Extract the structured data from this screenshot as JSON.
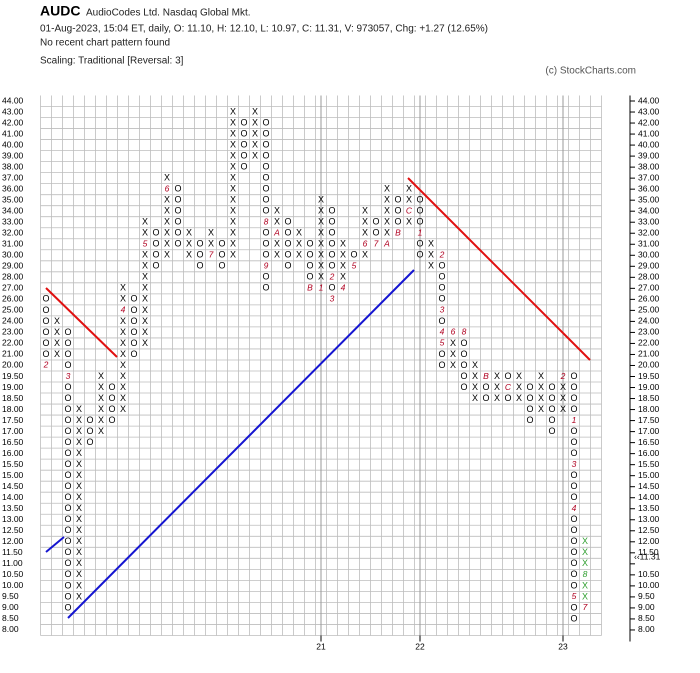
{
  "chart_data": {
    "type": "point-and-figure",
    "symbol": "AUDC",
    "company": "AudioCodes Ltd.  Nasdaq Global Mkt.",
    "quote_line": "01-Aug-2023, 15:04 ET, daily, O: 11.10, H: 12.10, L: 10.97, C: 11.31, V: 973057, Chg: +1.27 (12.65%)",
    "pattern_note": "No recent chart pattern found",
    "scaling": "Scaling: Traditional [Reversal: 3]",
    "credit": "(c) StockCharts.com",
    "x_symbol": "X",
    "o_symbol": "O",
    "x_color": "#000000",
    "o_color": "#000000",
    "mark_color": "#b00020",
    "grid": true,
    "yticks": [
      {
        "value": 44,
        "label": "44.00"
      },
      {
        "value": 43,
        "label": "43.00"
      },
      {
        "value": 42,
        "label": "42.00"
      },
      {
        "value": 41,
        "label": "41.00"
      },
      {
        "value": 40,
        "label": "40.00"
      },
      {
        "value": 39,
        "label": "39.00"
      },
      {
        "value": 38,
        "label": "38.00"
      },
      {
        "value": 37,
        "label": "37.00"
      },
      {
        "value": 36,
        "label": "36.00"
      },
      {
        "value": 35,
        "label": "35.00"
      },
      {
        "value": 34,
        "label": "34.00"
      },
      {
        "value": 33,
        "label": "33.00"
      },
      {
        "value": 32,
        "label": "32.00"
      },
      {
        "value": 31,
        "label": "31.00"
      },
      {
        "value": 30,
        "label": "30.00"
      },
      {
        "value": 29,
        "label": "29.00"
      },
      {
        "value": 28,
        "label": "28.00"
      },
      {
        "value": 27,
        "label": "27.00"
      },
      {
        "value": 26,
        "label": "26.00"
      },
      {
        "value": 25,
        "label": "25.00"
      },
      {
        "value": 24,
        "label": "24.00"
      },
      {
        "value": 23,
        "label": "23.00"
      },
      {
        "value": 22,
        "label": "22.00"
      },
      {
        "value": 21,
        "label": "21.00"
      },
      {
        "value": 20,
        "label": "20.00"
      },
      {
        "value": 19.5,
        "label": "19.50"
      },
      {
        "value": 19,
        "label": "19.00"
      },
      {
        "value": 18.5,
        "label": "18.50"
      },
      {
        "value": 18,
        "label": "18.00"
      },
      {
        "value": 17.5,
        "label": "17.50"
      },
      {
        "value": 17,
        "label": "17.00"
      },
      {
        "value": 16.5,
        "label": "16.50"
      },
      {
        "value": 16,
        "label": "16.00"
      },
      {
        "value": 15.5,
        "label": "15.50"
      },
      {
        "value": 15,
        "label": "15.00"
      },
      {
        "value": 14.5,
        "label": "14.50"
      },
      {
        "value": 14,
        "label": "14.00"
      },
      {
        "value": 13.5,
        "label": "13.50"
      },
      {
        "value": 13,
        "label": "13.00"
      },
      {
        "value": 12.5,
        "label": "12.50"
      },
      {
        "value": 12,
        "label": "12.00"
      },
      {
        "value": 11.5,
        "label": "11.50"
      },
      {
        "value": 11,
        "label": "11.00",
        "color": "#b00020"
      },
      {
        "value": 10.5,
        "label": "10.50"
      },
      {
        "value": 10,
        "label": "10.00"
      },
      {
        "value": 9.5,
        "label": "9.50"
      },
      {
        "value": 9,
        "label": "9.00"
      },
      {
        "value": 8.5,
        "label": "8.50"
      },
      {
        "value": 8,
        "label": "8.00"
      }
    ],
    "last_price": {
      "value": 11.31,
      "label": "‹‹11.31",
      "color": "#b00020"
    },
    "columns": [
      {
        "kind": "O",
        "from": 20,
        "to": 26,
        "marks": [
          {
            "price": 20,
            "label": "2"
          }
        ]
      },
      {
        "kind": "X",
        "from": 21,
        "to": 24,
        "marks": []
      },
      {
        "kind": "O",
        "from": 9,
        "to": 23,
        "marks": [
          {
            "price": 19.5,
            "label": "3"
          }
        ]
      },
      {
        "kind": "X",
        "from": 9.5,
        "to": 18,
        "marks": []
      },
      {
        "kind": "O",
        "from": 16.5,
        "to": 17.5,
        "marks": []
      },
      {
        "kind": "X",
        "from": 17,
        "to": 19.5,
        "marks": []
      },
      {
        "kind": "O",
        "from": 17.5,
        "to": 19,
        "marks": []
      },
      {
        "kind": "X",
        "from": 18,
        "to": 27,
        "marks": [
          {
            "price": 25,
            "label": "4"
          }
        ]
      },
      {
        "kind": "O",
        "from": 21,
        "to": 26,
        "marks": []
      },
      {
        "kind": "X",
        "from": 22,
        "to": 33,
        "marks": [
          {
            "price": 31,
            "label": "5"
          }
        ]
      },
      {
        "kind": "O",
        "from": 29,
        "to": 32,
        "marks": []
      },
      {
        "kind": "X",
        "from": 30,
        "to": 37,
        "marks": [
          {
            "price": 36,
            "label": "6"
          }
        ]
      },
      {
        "kind": "O",
        "from": 31,
        "to": 36,
        "marks": []
      },
      {
        "kind": "X",
        "from": 30,
        "to": 32,
        "marks": []
      },
      {
        "kind": "O",
        "from": 29,
        "to": 31,
        "marks": []
      },
      {
        "kind": "X",
        "from": 30,
        "to": 32,
        "marks": [
          {
            "price": 30,
            "label": "7"
          }
        ]
      },
      {
        "kind": "O",
        "from": 29,
        "to": 31,
        "marks": []
      },
      {
        "kind": "X",
        "from": 30,
        "to": 43,
        "marks": []
      },
      {
        "kind": "O",
        "from": 38,
        "to": 42,
        "marks": []
      },
      {
        "kind": "X",
        "from": 39,
        "to": 43,
        "marks": []
      },
      {
        "kind": "O",
        "from": 27,
        "to": 42,
        "marks": [
          {
            "price": 33,
            "label": "8"
          },
          {
            "price": 29,
            "label": "9"
          }
        ]
      },
      {
        "kind": "X",
        "from": 30,
        "to": 34,
        "marks": [
          {
            "price": 32,
            "label": "A"
          }
        ]
      },
      {
        "kind": "O",
        "from": 29,
        "to": 33,
        "marks": []
      },
      {
        "kind": "X",
        "from": 30,
        "to": 32,
        "marks": []
      },
      {
        "kind": "O",
        "from": 27,
        "to": 31,
        "marks": [
          {
            "price": 27,
            "label": "B"
          }
        ]
      },
      {
        "kind": "X",
        "from": 27,
        "to": 35,
        "marks": [
          {
            "price": 27,
            "label": "1"
          }
        ]
      },
      {
        "kind": "O",
        "from": 26,
        "to": 34,
        "marks": [
          {
            "price": 28,
            "label": "2"
          },
          {
            "price": 26,
            "label": "3"
          }
        ]
      },
      {
        "kind": "X",
        "from": 27,
        "to": 31,
        "marks": [
          {
            "price": 27,
            "label": "4"
          }
        ]
      },
      {
        "kind": "O",
        "from": 29,
        "to": 30,
        "marks": [
          {
            "price": 29,
            "label": "5"
          }
        ]
      },
      {
        "kind": "X",
        "from": 30,
        "to": 34,
        "marks": [
          {
            "price": 31,
            "label": "6"
          }
        ]
      },
      {
        "kind": "O",
        "from": 31,
        "to": 33,
        "marks": [
          {
            "price": 31,
            "label": "7"
          }
        ]
      },
      {
        "kind": "X",
        "from": 31,
        "to": 36,
        "marks": [
          {
            "price": 31,
            "label": "A"
          }
        ]
      },
      {
        "kind": "O",
        "from": 32,
        "to": 35,
        "marks": [
          {
            "price": 32,
            "label": "B"
          }
        ]
      },
      {
        "kind": "X",
        "from": 33,
        "to": 36,
        "marks": [
          {
            "price": 34,
            "label": "C"
          }
        ]
      },
      {
        "kind": "O",
        "from": 30,
        "to": 35,
        "marks": [
          {
            "price": 32,
            "label": "1"
          }
        ]
      },
      {
        "kind": "X",
        "from": 29,
        "to": 31,
        "marks": []
      },
      {
        "kind": "O",
        "from": 20,
        "to": 30,
        "marks": [
          {
            "price": 30,
            "label": "2"
          },
          {
            "price": 25,
            "label": "3"
          },
          {
            "price": 23,
            "label": "4"
          },
          {
            "price": 22,
            "label": "5"
          }
        ]
      },
      {
        "kind": "X",
        "from": 20,
        "to": 23,
        "marks": [
          {
            "price": 23,
            "label": "6"
          }
        ]
      },
      {
        "kind": "O",
        "from": 19,
        "to": 23,
        "marks": [
          {
            "price": 23,
            "label": "8"
          }
        ]
      },
      {
        "kind": "X",
        "from": 18.5,
        "to": 20,
        "marks": []
      },
      {
        "kind": "O",
        "from": 18.5,
        "to": 19.5,
        "marks": [
          {
            "price": 19.5,
            "label": "B"
          }
        ]
      },
      {
        "kind": "X",
        "from": 18.5,
        "to": 19.5,
        "marks": []
      },
      {
        "kind": "O",
        "from": 18.5,
        "to": 19.5,
        "marks": [
          {
            "price": 19,
            "label": "C"
          }
        ]
      },
      {
        "kind": "X",
        "from": 18.5,
        "to": 19.5,
        "marks": []
      },
      {
        "kind": "O",
        "from": 17.5,
        "to": 19,
        "marks": []
      },
      {
        "kind": "X",
        "from": 18,
        "to": 19.5,
        "marks": []
      },
      {
        "kind": "O",
        "from": 17,
        "to": 19,
        "marks": []
      },
      {
        "kind": "X",
        "from": 18,
        "to": 19.5,
        "marks": [
          {
            "price": 19.5,
            "label": "2"
          }
        ]
      },
      {
        "kind": "O",
        "from": 8.5,
        "to": 19.5,
        "marks": [
          {
            "price": 17.5,
            "label": "1"
          },
          {
            "price": 15.5,
            "label": "3"
          },
          {
            "price": 13.5,
            "label": "4"
          },
          {
            "price": 9.5,
            "label": "5"
          }
        ]
      },
      {
        "kind": "X",
        "from": 9,
        "to": 12,
        "color": "#2e9e2e",
        "marks": [
          {
            "price": 10.5,
            "label": "8",
            "color": "#2e9e2e"
          },
          {
            "price": 9,
            "label": "7"
          }
        ]
      }
    ],
    "year_markers": [
      {
        "column": 25,
        "label": "21"
      },
      {
        "column": 34,
        "label": "22"
      },
      {
        "column": 47,
        "label": "23"
      }
    ]
  }
}
